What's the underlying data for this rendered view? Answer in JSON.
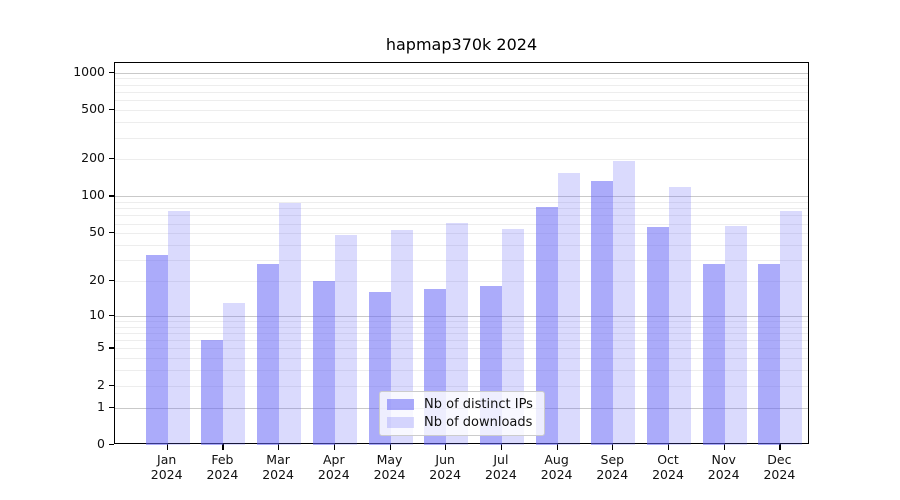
{
  "title": "hapmap370k 2024",
  "chart_data": {
    "type": "bar",
    "title": "hapmap370k 2024",
    "categories": [
      "Jan 2024",
      "Feb 2024",
      "Mar 2024",
      "Apr 2024",
      "May 2024",
      "Jun 2024",
      "Jul 2024",
      "Aug 2024",
      "Sep 2024",
      "Oct 2024",
      "Nov 2024",
      "Dec 2024"
    ],
    "series": [
      {
        "name": "Nb of distinct IPs",
        "color": "rgba(102,102,246,0.55)",
        "values": [
          33,
          6,
          28,
          20,
          16,
          17,
          18,
          82,
          133,
          56,
          28,
          28
        ]
      },
      {
        "name": "Nb of downloads",
        "color": "rgba(102,102,246,0.24)",
        "values": [
          76,
          13,
          88,
          48,
          53,
          61,
          54,
          155,
          192,
          120,
          57,
          76
        ]
      }
    ],
    "xlabel": "",
    "ylabel": "",
    "yscale": "symlog-ln1p",
    "ylim": [
      0,
      1200
    ],
    "yticks": [
      0,
      1,
      2,
      5,
      10,
      20,
      50,
      100,
      200,
      500,
      1000
    ],
    "grid": {
      "major": [
        1,
        10,
        100,
        1000
      ],
      "minor_decades": [
        1,
        10,
        100
      ]
    },
    "legend_position": "bottom-center",
    "colors": {
      "axis": "#000000",
      "grid_major": "#c9c9c9",
      "grid_minor": "#ededed",
      "text": "#111111"
    }
  }
}
